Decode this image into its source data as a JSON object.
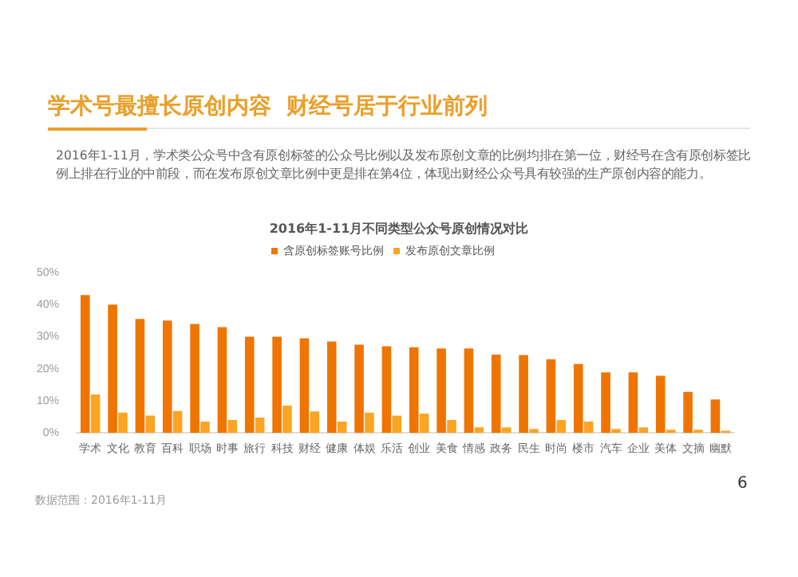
{
  "chart_data": {
    "type": "bar",
    "title": "学术号最擅长原创内容  财经号居于行业前列",
    "subtitle": "2016年1-11月，学术类公众号中含有原创标签的公众号比例以及发布原创文章的比例均排在第一位，财经号在含有原创标签比例上排在行业的中前段，而在发布原创文章比例中更是排在第4位，体现出财经公众号具有较强的生产原创内容的能力。",
    "annotations": [
      "2016年1-11月不同类型公众号原创情况对比",
      "数据范围：2016年1-11月",
      "6"
    ],
    "categories": [
      "学术",
      "文化",
      "教育",
      "百科",
      "职场",
      "时事",
      "旅行",
      "科技",
      "财经",
      "健康",
      "体娱",
      "乐活",
      "创业",
      "美食",
      "情感",
      "政务",
      "民生",
      "时尚",
      "楼市",
      "汽车",
      "企业",
      "美体",
      "文摘",
      "幽默"
    ],
    "series": [
      {
        "name": "含原创标签账号比例",
        "color": "#f07400",
        "values": [
          43,
          40,
          35.5,
          35,
          34,
          33,
          30,
          30,
          29.5,
          28.5,
          27.5,
          27,
          26.7,
          26.3,
          26.3,
          24.4,
          24.3,
          23,
          21.5,
          18.9,
          18.9,
          17.8,
          12.8,
          10.4
        ]
      },
      {
        "name": "发布原创文章比例",
        "color": "#fca423",
        "values": [
          12,
          6.3,
          5.4,
          6.8,
          3.5,
          4,
          4.8,
          8.5,
          6.7,
          3.5,
          6.3,
          5.4,
          6,
          4,
          1.7,
          1.7,
          1.2,
          4,
          3.5,
          1.2,
          1.7,
          1,
          1,
          0.7
        ]
      }
    ],
    "ylim": [
      0,
      50
    ],
    "yticks": [
      {
        "value": 0,
        "label": "0%"
      },
      {
        "value": 10,
        "label": "10%"
      },
      {
        "value": 20,
        "label": "20%"
      },
      {
        "value": 30,
        "label": "30%"
      },
      {
        "value": 40,
        "label": "40%"
      },
      {
        "value": 50,
        "label": "50%"
      }
    ],
    "grid": false,
    "legend": "top"
  }
}
